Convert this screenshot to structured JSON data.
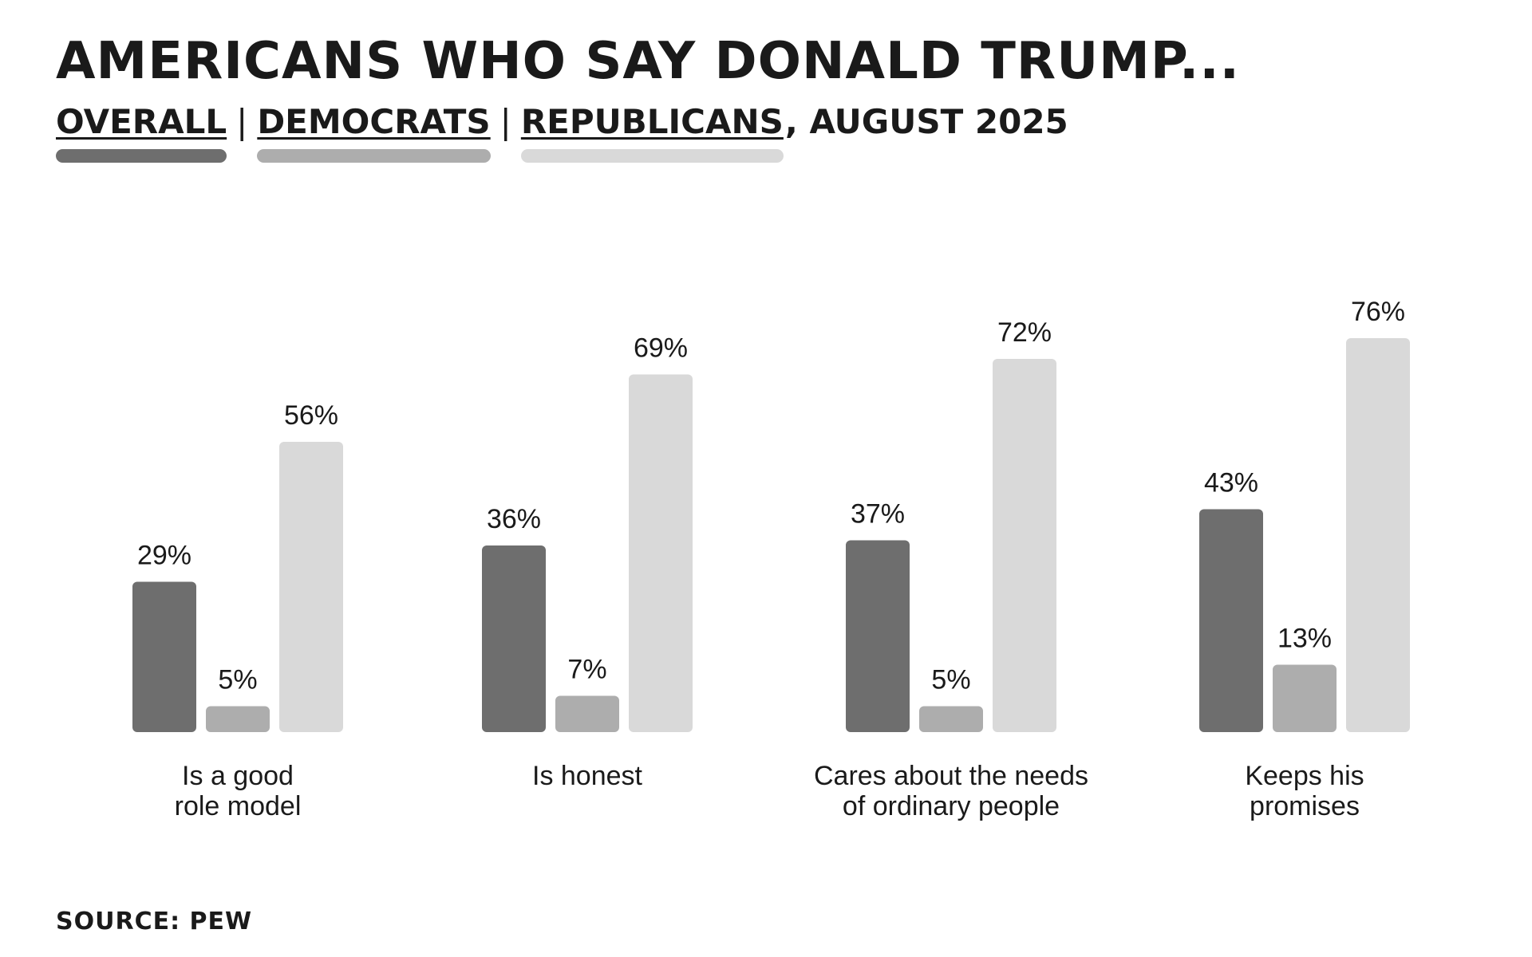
{
  "chart_data": {
    "type": "bar",
    "title": "AMERICANS WHO SAY DONALD TRUMP...",
    "subtitle_suffix": ", AUGUST 2025",
    "categories": [
      [
        "Is a good",
        "role model"
      ],
      [
        "Is honest"
      ],
      [
        "Cares about the needs",
        "of ordinary people"
      ],
      [
        "Keeps his",
        "promises"
      ]
    ],
    "series": [
      {
        "name": "OVERALL",
        "color": "#6e6e6e",
        "values": [
          29,
          36,
          37,
          43
        ],
        "labels": [
          "29%",
          "36%",
          "37%",
          "43%"
        ]
      },
      {
        "name": "DEMOCRATS",
        "color": "#adadad",
        "values": [
          5,
          7,
          5,
          13
        ],
        "labels": [
          "5%",
          "7%",
          "5%",
          "13%"
        ]
      },
      {
        "name": "REPUBLICANS",
        "color": "#d9d9d9",
        "values": [
          56,
          69,
          72,
          76
        ],
        "labels": [
          "56%",
          "69%",
          "72%",
          "76%"
        ]
      }
    ],
    "ylim": [
      0,
      100
    ],
    "xlabel": "",
    "ylabel": "",
    "grid": false,
    "legend_position": "top-left",
    "source": "SOURCE: PEW"
  }
}
